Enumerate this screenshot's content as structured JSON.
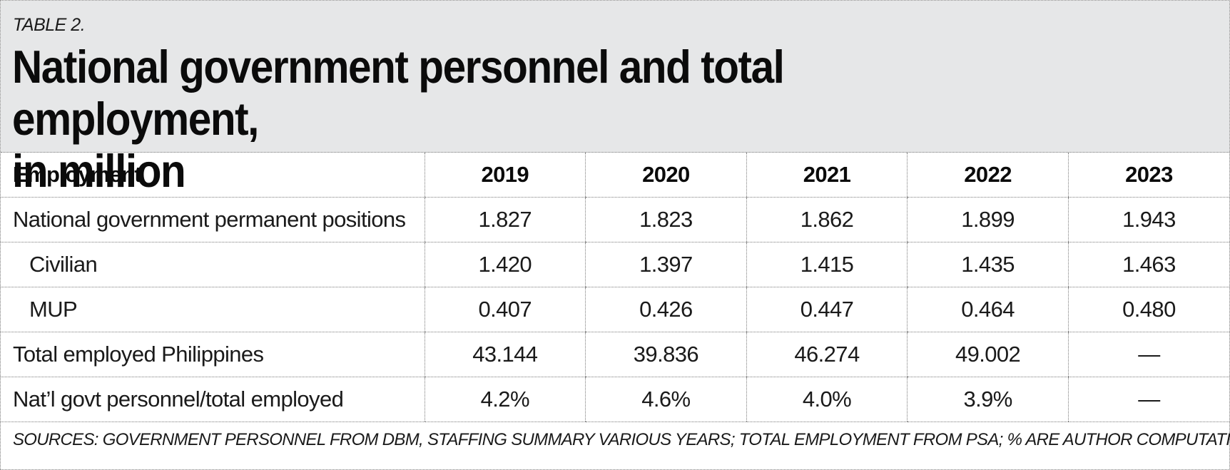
{
  "table_label": "TABLE 2.",
  "title_line1": "National government personnel and total employment,",
  "title_line2": "in million",
  "table": {
    "header": {
      "label": "Employment",
      "years": [
        "2019",
        "2020",
        "2021",
        "2022",
        "2023"
      ]
    },
    "rows": [
      {
        "label": "National government permanent positions",
        "values": [
          "1.827",
          "1.823",
          "1.862",
          "1.899",
          "1.943"
        ]
      },
      {
        "label": "Civilian",
        "values": [
          "1.420",
          "1.397",
          "1.415",
          "1.435",
          "1.463"
        ]
      },
      {
        "label": "MUP",
        "values": [
          "0.407",
          "0.426",
          "0.447",
          "0.464",
          "0.480"
        ]
      },
      {
        "label": "Total employed Philippines",
        "values": [
          "43.144",
          "39.836",
          "46.274",
          "49.002",
          "—"
        ]
      },
      {
        "label": "Nat’l govt personnel/total employed",
        "values": [
          "4.2%",
          "4.6%",
          "4.0%",
          "3.9%",
          "—"
        ]
      }
    ]
  },
  "sources": "SOURCES: GOVERNMENT PERSONNEL FROM DBM, STAFFING SUMMARY VARIOUS YEARS; TOTAL EMPLOYMENT FROM PSA; % ARE AUTHOR COMPUTATIONS.",
  "colors": {
    "header_background": "#e6e7e8",
    "rule": "#7a7a7a",
    "text": "#111111"
  }
}
